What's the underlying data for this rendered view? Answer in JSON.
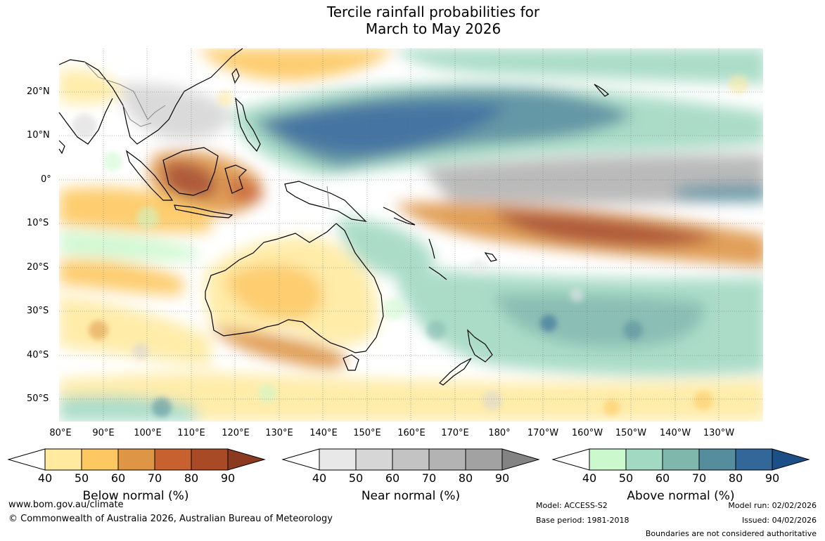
{
  "title": {
    "line1": "Tercile rainfall probabilities for",
    "line2": "March to May 2026"
  },
  "map": {
    "latitude_labels": [
      "20°N",
      "10°N",
      "0°",
      "10°S",
      "20°S",
      "30°S",
      "40°S",
      "50°S"
    ],
    "longitude_labels": [
      "80°E",
      "90°E",
      "100°E",
      "110°E",
      "120°E",
      "130°E",
      "140°E",
      "150°E",
      "160°E",
      "170°E",
      "180°",
      "170°W",
      "160°W",
      "150°W",
      "140°W",
      "130°W"
    ]
  },
  "legends": [
    {
      "title": "Below normal (%)",
      "ticks": [
        "40",
        "50",
        "60",
        "70",
        "80",
        "90"
      ],
      "colors": [
        "#ffffff",
        "#ffeaa0",
        "#fdc861",
        "#de9546",
        "#c7612f",
        "#a84a26",
        "#8c3a1f"
      ]
    },
    {
      "title": "Near normal (%)",
      "ticks": [
        "40",
        "50",
        "60",
        "70",
        "80",
        "90"
      ],
      "colors": [
        "#ffffff",
        "#e8e8e8",
        "#d6d6d6",
        "#c3c3c3",
        "#b3b3b3",
        "#a2a2a2",
        "#838383"
      ]
    },
    {
      "title": "Above normal (%)",
      "ticks": [
        "40",
        "50",
        "60",
        "70",
        "80",
        "90"
      ],
      "colors": [
        "#ffffff",
        "#cbf8cc",
        "#a2d9c2",
        "#7fb7ac",
        "#558d9d",
        "#336699",
        "#1b4f86"
      ]
    }
  ],
  "footer": {
    "website": "www.bom.gov.au/climate",
    "copyright": "© Commonwealth of Australia 2026, Australian Bureau of Meteorology",
    "model": "Model: ACCESS-S2",
    "base_period": "Base period: 1981-2018",
    "model_run": "Model run: 02/02/2026",
    "issued": "Issued: 04/02/2026",
    "disclaimer": "Boundaries are not considered authoritative"
  }
}
